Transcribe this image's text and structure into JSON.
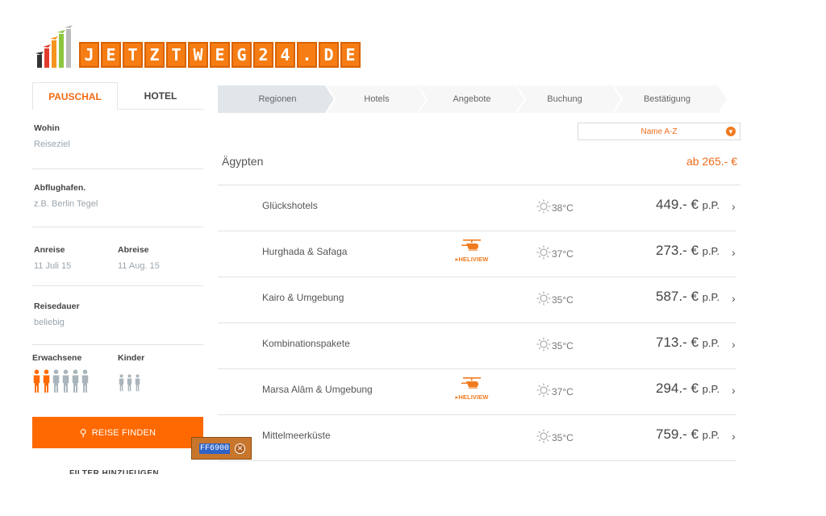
{
  "app": {
    "logo_text": "JETZTWEG24.DE",
    "accent_color": "#ff6900"
  },
  "sidebar": {
    "tabs": [
      {
        "label": "PAUSCHAL",
        "active": true
      },
      {
        "label": "HOTEL",
        "active": false
      }
    ],
    "destination": {
      "label": "Wohin",
      "placeholder": "Reiseziel"
    },
    "airport": {
      "label": "Abflughafen.",
      "placeholder": "z.B. Berlin Tegel"
    },
    "departure": {
      "label": "Anreise",
      "value": "11 Juli 15"
    },
    "return": {
      "label": "Abreise",
      "value": "11 Aug. 15"
    },
    "duration": {
      "label": "Reisedauer",
      "value": "beliebig"
    },
    "adults": {
      "label": "Erwachsene",
      "selected": 2,
      "max": 6
    },
    "children": {
      "label": "Kinder",
      "count": 3
    },
    "search_button": {
      "label": "REISE FINDEN",
      "icon": "search-icon"
    },
    "filter_link": "FILTER HINZUFÜGEN"
  },
  "color_tooltip": {
    "value": "FF6900",
    "icon": "close-circle-icon"
  },
  "steps": [
    "Regionen",
    "Hotels",
    "Angebote",
    "Buchung",
    "Bestätigung"
  ],
  "sort": {
    "value": "Name A-Z",
    "icon": "chevron-down-icon"
  },
  "region": {
    "name": "Ägypten",
    "price": "ab 265.- €"
  },
  "rows": [
    {
      "name": "Glückshotels",
      "heliview": false,
      "temp": "38°C",
      "price": "449.- €",
      "unit": "p.P."
    },
    {
      "name": "Hurghada & Safaga",
      "heliview": true,
      "temp": "37°C",
      "price": "273.- €",
      "unit": "p.P."
    },
    {
      "name": "Kairo & Umgebung",
      "heliview": false,
      "temp": "35°C",
      "price": "587.- €",
      "unit": "p.P."
    },
    {
      "name": "Kombinationspakete",
      "heliview": false,
      "temp": "35°C",
      "price": "713.- €",
      "unit": "p.P."
    },
    {
      "name": "Marsa Alâm & Umgebung",
      "heliview": true,
      "temp": "37°C",
      "price": "294.- €",
      "unit": "p.P."
    },
    {
      "name": "Mittelmeerküste",
      "heliview": false,
      "temp": "35°C",
      "price": "759.- €",
      "unit": "p.P."
    }
  ],
  "heliview_label": "HELIVIEW"
}
